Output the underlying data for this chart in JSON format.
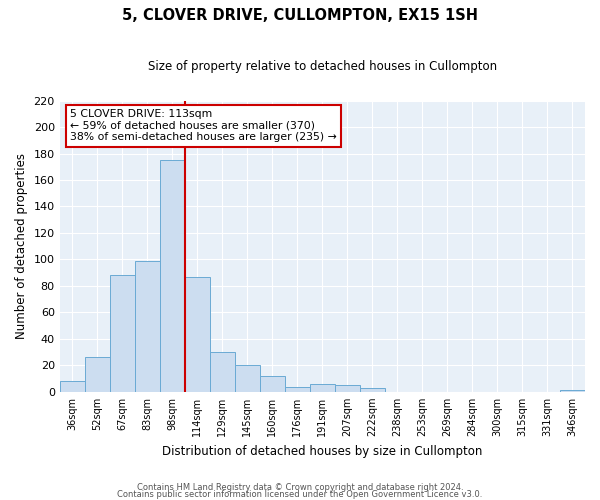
{
  "title": "5, CLOVER DRIVE, CULLOMPTON, EX15 1SH",
  "subtitle": "Size of property relative to detached houses in Cullompton",
  "xlabel": "Distribution of detached houses by size in Cullompton",
  "ylabel": "Number of detached properties",
  "bar_labels": [
    "36sqm",
    "52sqm",
    "67sqm",
    "83sqm",
    "98sqm",
    "114sqm",
    "129sqm",
    "145sqm",
    "160sqm",
    "176sqm",
    "191sqm",
    "207sqm",
    "222sqm",
    "238sqm",
    "253sqm",
    "269sqm",
    "284sqm",
    "300sqm",
    "315sqm",
    "331sqm",
    "346sqm"
  ],
  "bar_values": [
    8,
    26,
    88,
    99,
    175,
    87,
    30,
    20,
    12,
    4,
    6,
    5,
    3,
    0,
    0,
    0,
    0,
    0,
    0,
    0,
    1
  ],
  "bar_color": "#ccddf0",
  "bar_edge_color": "#6aaad4",
  "vline_x": 5,
  "vline_color": "#cc0000",
  "ylim": [
    0,
    220
  ],
  "yticks": [
    0,
    20,
    40,
    60,
    80,
    100,
    120,
    140,
    160,
    180,
    200,
    220
  ],
  "annotation_title": "5 CLOVER DRIVE: 113sqm",
  "annotation_line1": "← 59% of detached houses are smaller (370)",
  "annotation_line2": "38% of semi-detached houses are larger (235) →",
  "annotation_box_color": "#ffffff",
  "annotation_box_edge": "#cc0000",
  "footer1": "Contains HM Land Registry data © Crown copyright and database right 2024.",
  "footer2": "Contains public sector information licensed under the Open Government Licence v3.0.",
  "bg_color": "#e8f0f8",
  "grid_color": "#ffffff"
}
